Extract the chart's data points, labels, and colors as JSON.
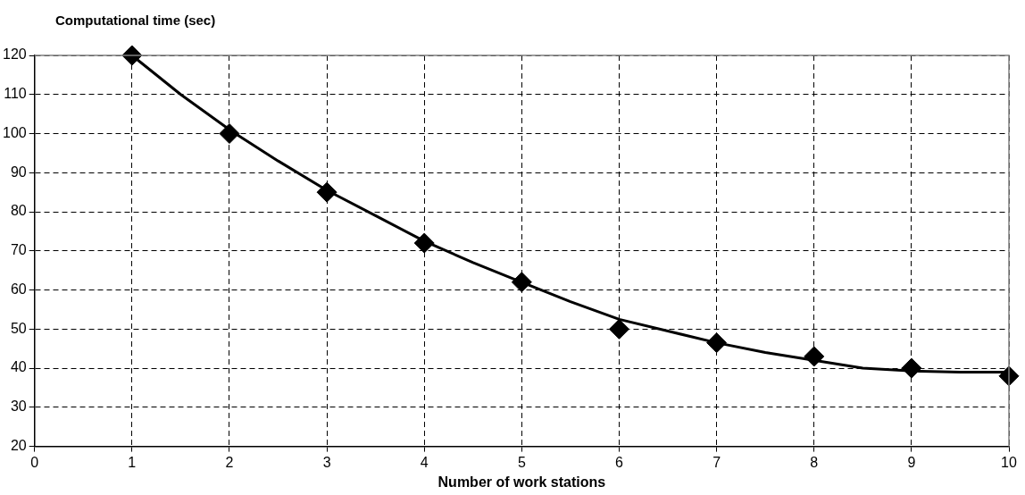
{
  "chart_data": {
    "type": "scatter",
    "title": "Computational time (sec)",
    "xlabel": "Number of work stations",
    "xlim": [
      0,
      10
    ],
    "xticks": [
      0,
      1,
      2,
      3,
      4,
      5,
      6,
      7,
      8,
      9,
      10
    ],
    "ylim": [
      20,
      120
    ],
    "yticks": [
      20,
      30,
      40,
      50,
      60,
      70,
      80,
      90,
      100,
      110,
      120
    ],
    "grid": true,
    "legend": false,
    "marker": "diamond",
    "x": [
      1,
      2,
      3,
      4,
      5,
      6,
      7,
      8,
      9,
      10
    ],
    "series": [
      {
        "color": "#000000",
        "values": [
          120,
          100,
          85,
          72,
          62,
          50,
          46.5,
          43,
          40,
          38
        ]
      },
      {
        "type": "line",
        "color": "#000000",
        "marker": "none",
        "line_style": "solid",
        "x": [
          1,
          1.5,
          2,
          2.5,
          3,
          3.5,
          4,
          4.5,
          5,
          5.5,
          6,
          6.5,
          7,
          7.5,
          8,
          8.5,
          9,
          9.5,
          10
        ],
        "values": [
          120,
          110,
          101,
          93,
          85.5,
          79,
          72.5,
          67,
          62,
          57,
          52.5,
          49.5,
          46.5,
          44,
          42,
          40,
          39.3,
          39,
          39
        ]
      }
    ]
  }
}
